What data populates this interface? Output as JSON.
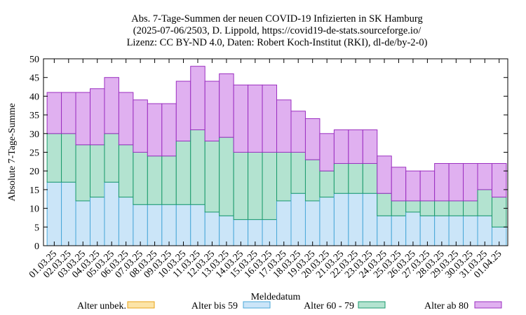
{
  "chart_data": {
    "type": "bar",
    "stacked": true,
    "title_lines": [
      "Abs. 7-Tage-Summen der neuen COVID-19 Infizierten in SK Hamburg",
      "(2025-07-06/2503, D. Lippold, https://covid19-de-stats.sourceforge.io/",
      "Lizenz: CC BY-ND 4.0, Daten: Robert Koch-Institut (RKI), dl-de/by-2-0)"
    ],
    "xlabel": "Meldedatum",
    "ylabel": "Absolute 7-Tage-Summe",
    "ylim": [
      0,
      50
    ],
    "yticks": [
      0,
      5,
      10,
      15,
      20,
      25,
      30,
      35,
      40,
      45,
      50
    ],
    "grid": false,
    "legend_position": "bottom",
    "categories": [
      "01.03.25",
      "02.03.25",
      "03.03.25",
      "04.03.25",
      "05.03.25",
      "06.03.25",
      "07.03.25",
      "08.03.25",
      "09.03.25",
      "10.03.25",
      "11.03.25",
      "12.03.25",
      "13.03.25",
      "14.03.25",
      "15.03.25",
      "16.03.25",
      "17.03.25",
      "18.03.25",
      "19.03.25",
      "20.03.25",
      "21.03.25",
      "22.03.25",
      "23.03.25",
      "24.03.25",
      "25.03.25",
      "26.03.25",
      "27.03.25",
      "28.03.25",
      "29.03.25",
      "30.03.25",
      "31.03.25",
      "01.04.25"
    ],
    "series": [
      {
        "name": "Alter unbek.",
        "fill": "#fce4a8",
        "stroke": "#e8a317",
        "values": [
          0,
          0,
          0,
          0,
          0,
          0,
          0,
          0,
          0,
          0,
          0,
          0,
          0,
          0,
          0,
          0,
          0,
          0,
          0,
          0,
          0,
          0,
          0,
          0,
          0,
          0,
          0,
          0,
          0,
          0,
          0,
          0
        ]
      },
      {
        "name": "Alter bis 59",
        "fill": "#cbe5f8",
        "stroke": "#4aa8d8",
        "values": [
          17,
          17,
          12,
          13,
          17,
          13,
          11,
          11,
          11,
          11,
          11,
          9,
          8,
          7,
          7,
          7,
          12,
          14,
          12,
          13,
          14,
          14,
          14,
          8,
          8,
          9,
          8,
          8,
          8,
          8,
          8,
          5
        ]
      },
      {
        "name": "Alter 60 - 79",
        "fill": "#b3e3d0",
        "stroke": "#1a9a6c",
        "values": [
          13,
          13,
          15,
          14,
          13,
          14,
          14,
          13,
          13,
          17,
          20,
          19,
          21,
          18,
          18,
          18,
          13,
          11,
          11,
          7,
          8,
          8,
          8,
          6,
          4,
          3,
          4,
          4,
          4,
          4,
          7,
          8
        ]
      },
      {
        "name": "Alter ab 80",
        "fill": "#e0b0f0",
        "stroke": "#9b2fc0",
        "values": [
          11,
          11,
          14,
          15,
          15,
          14,
          14,
          14,
          14,
          16,
          17,
          16,
          17,
          18,
          18,
          18,
          14,
          11,
          11,
          10,
          9,
          9,
          9,
          10,
          9,
          8,
          8,
          10,
          10,
          10,
          7,
          9
        ]
      }
    ]
  }
}
